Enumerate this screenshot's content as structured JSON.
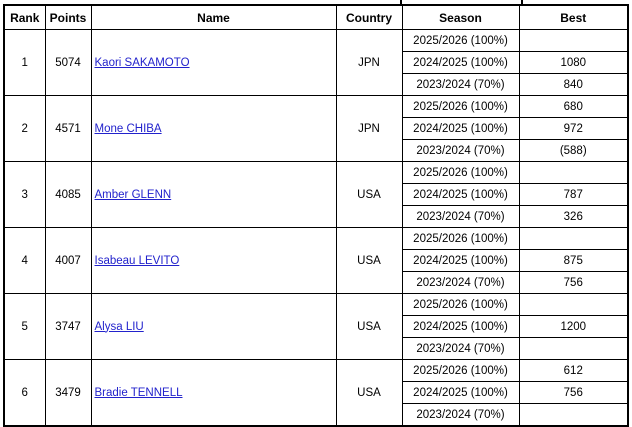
{
  "colors": {
    "link_blue": "#2222cc",
    "border": "#000000",
    "text": "#000000",
    "background": "#ffffff"
  },
  "header": {
    "rank": "Rank",
    "points": "Points",
    "name": "Name",
    "country": "Country",
    "season": "Season",
    "best": "Best"
  },
  "rows": [
    {
      "rank": "1",
      "points": "5074",
      "name": "Kaori SAKAMOTO",
      "country": "JPN",
      "seasons": [
        {
          "season": "2025/2026 (100%)",
          "best": ""
        },
        {
          "season": "2024/2025 (100%)",
          "best": "1080"
        },
        {
          "season": "2023/2024 (70%)",
          "best": "840"
        }
      ]
    },
    {
      "rank": "2",
      "points": "4571",
      "name": "Mone CHIBA",
      "country": "JPN",
      "seasons": [
        {
          "season": "2025/2026 (100%)",
          "best": "680"
        },
        {
          "season": "2024/2025 (100%)",
          "best": "972"
        },
        {
          "season": "2023/2024 (70%)",
          "best": "(588)"
        }
      ]
    },
    {
      "rank": "3",
      "points": "4085",
      "name": "Amber GLENN",
      "country": "USA",
      "seasons": [
        {
          "season": "2025/2026 (100%)",
          "best": ""
        },
        {
          "season": "2024/2025 (100%)",
          "best": "787"
        },
        {
          "season": "2023/2024 (70%)",
          "best": "326"
        }
      ]
    },
    {
      "rank": "4",
      "points": "4007",
      "name": "Isabeau LEVITO",
      "country": "USA",
      "seasons": [
        {
          "season": "2025/2026 (100%)",
          "best": ""
        },
        {
          "season": "2024/2025 (100%)",
          "best": "875"
        },
        {
          "season": "2023/2024 (70%)",
          "best": "756"
        }
      ]
    },
    {
      "rank": "5",
      "points": "3747",
      "name": "Alysa LIU",
      "country": "USA",
      "seasons": [
        {
          "season": "2025/2026 (100%)",
          "best": ""
        },
        {
          "season": "2024/2025 (100%)",
          "best": "1200"
        },
        {
          "season": "2023/2024 (70%)",
          "best": ""
        }
      ]
    },
    {
      "rank": "6",
      "points": "3479",
      "name": "Bradie TENNELL",
      "country": "USA",
      "seasons": [
        {
          "season": "2025/2026 (100%)",
          "best": "612"
        },
        {
          "season": "2024/2025 (100%)",
          "best": "756"
        },
        {
          "season": "2023/2024 (70%)",
          "best": ""
        }
      ]
    }
  ]
}
